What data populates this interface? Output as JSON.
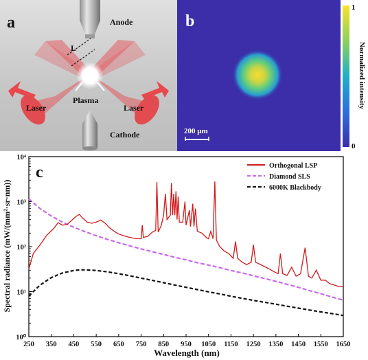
{
  "panel_a": {
    "letter": "a",
    "labels": {
      "anode": "Anode",
      "cathode": "Cathode",
      "laser_left": "Laser",
      "laser_right": "Laser",
      "plasma": "Plasma",
      "length": "L"
    },
    "colors": {
      "laser": "#e8474c",
      "background": "#cfcfcf"
    }
  },
  "panel_b": {
    "letter": "b",
    "scale_bar": "200 µm",
    "colorbar": {
      "label": "Normalized intensity",
      "max_label": "1",
      "min_label": "0"
    },
    "colors": {
      "background": "#3b2ea8",
      "spot_outer": "#1fa6c9",
      "spot_mid": "#6fd07a",
      "spot_core": "#f3d62f"
    }
  },
  "panel_c": {
    "letter": "c"
  },
  "chart_data": {
    "type": "line",
    "xlabel": "Wavelength (nm)",
    "ylabel": "Spectral radiance (mW/(mm²·sr·nm))",
    "xlim": [
      250,
      1650
    ],
    "ylim": [
      1,
      10000
    ],
    "yscale": "log",
    "x_ticks": [
      "250",
      "350",
      "450",
      "550",
      "650",
      "750",
      "850",
      "950",
      "1050",
      "1150",
      "1250",
      "1350",
      "1450",
      "1550",
      "1650"
    ],
    "y_ticks": [
      "10⁰",
      "10¹",
      "10²",
      "10³",
      "10⁴"
    ],
    "legend_position": "top-right",
    "series": [
      {
        "name": "Orthogonal LSP",
        "color": "#d11a1a",
        "style": "solid",
        "points": [
          [
            250,
            32
          ],
          [
            270,
            70
          ],
          [
            300,
            110
          ],
          [
            330,
            180
          ],
          [
            360,
            250
          ],
          [
            380,
            340
          ],
          [
            400,
            300
          ],
          [
            420,
            310
          ],
          [
            440,
            380
          ],
          [
            460,
            470
          ],
          [
            475,
            520
          ],
          [
            490,
            430
          ],
          [
            510,
            350
          ],
          [
            530,
            330
          ],
          [
            550,
            350
          ],
          [
            570,
            390
          ],
          [
            590,
            330
          ],
          [
            610,
            260
          ],
          [
            630,
            220
          ],
          [
            650,
            190
          ],
          [
            680,
            170
          ],
          [
            700,
            160
          ],
          [
            730,
            150
          ],
          [
            750,
            150
          ],
          [
            755,
            300
          ],
          [
            760,
            160
          ],
          [
            780,
            170
          ],
          [
            800,
            210
          ],
          [
            815,
            230
          ],
          [
            820,
            2700
          ],
          [
            826,
            210
          ],
          [
            840,
            300
          ],
          [
            850,
            500
          ],
          [
            858,
            1500
          ],
          [
            865,
            400
          ],
          [
            880,
            500
          ],
          [
            885,
            2600
          ],
          [
            890,
            500
          ],
          [
            895,
            1500
          ],
          [
            900,
            500
          ],
          [
            905,
            1700
          ],
          [
            910,
            400
          ],
          [
            915,
            1300
          ],
          [
            920,
            350
          ],
          [
            935,
            350
          ],
          [
            945,
            1000
          ],
          [
            950,
            300
          ],
          [
            965,
            650
          ],
          [
            970,
            280
          ],
          [
            980,
            900
          ],
          [
            985,
            280
          ],
          [
            992,
            700
          ],
          [
            1000,
            220
          ],
          [
            1020,
            200
          ],
          [
            1040,
            160
          ],
          [
            1050,
            150
          ],
          [
            1060,
            220
          ],
          [
            1070,
            150
          ],
          [
            1078,
            2800
          ],
          [
            1085,
            140
          ],
          [
            1100,
            100
          ],
          [
            1120,
            80
          ],
          [
            1140,
            70
          ],
          [
            1160,
            55
          ],
          [
            1170,
            130
          ],
          [
            1180,
            55
          ],
          [
            1200,
            45
          ],
          [
            1220,
            40
          ],
          [
            1240,
            45
          ],
          [
            1250,
            110
          ],
          [
            1260,
            45
          ],
          [
            1290,
            38
          ],
          [
            1320,
            32
          ],
          [
            1340,
            28
          ],
          [
            1360,
            25
          ],
          [
            1370,
            70
          ],
          [
            1380,
            25
          ],
          [
            1400,
            23
          ],
          [
            1420,
            35
          ],
          [
            1440,
            22
          ],
          [
            1460,
            25
          ],
          [
            1480,
            95
          ],
          [
            1495,
            22
          ],
          [
            1510,
            20
          ],
          [
            1530,
            30
          ],
          [
            1550,
            18
          ],
          [
            1570,
            18
          ],
          [
            1590,
            15
          ],
          [
            1610,
            14
          ],
          [
            1630,
            13
          ],
          [
            1650,
            13
          ]
        ]
      },
      {
        "name": "Diamond SLS",
        "color": "#c66be8",
        "style": "dashed",
        "points": [
          [
            250,
            1150
          ],
          [
            300,
            700
          ],
          [
            350,
            480
          ],
          [
            400,
            350
          ],
          [
            450,
            270
          ],
          [
            500,
            215
          ],
          [
            550,
            175
          ],
          [
            600,
            145
          ],
          [
            650,
            122
          ],
          [
            700,
            104
          ],
          [
            750,
            89
          ],
          [
            800,
            77
          ],
          [
            850,
            67
          ],
          [
            900,
            58
          ],
          [
            950,
            51
          ],
          [
            1000,
            44
          ],
          [
            1050,
            39
          ],
          [
            1100,
            34
          ],
          [
            1150,
            29.5
          ],
          [
            1200,
            26
          ],
          [
            1250,
            22.5
          ],
          [
            1300,
            19.5
          ],
          [
            1350,
            17
          ],
          [
            1400,
            14.5
          ],
          [
            1450,
            12.5
          ],
          [
            1500,
            10.5
          ],
          [
            1550,
            9
          ],
          [
            1600,
            7.6
          ],
          [
            1650,
            6.5
          ]
        ]
      },
      {
        "name": "6000K Blackbody",
        "color": "#111111",
        "style": "dashed",
        "points": [
          [
            250,
            8
          ],
          [
            300,
            14
          ],
          [
            350,
            20.5
          ],
          [
            400,
            26
          ],
          [
            450,
            29.5
          ],
          [
            475,
            30.5
          ],
          [
            500,
            30.5
          ],
          [
            550,
            29.5
          ],
          [
            600,
            27.5
          ],
          [
            650,
            25
          ],
          [
            700,
            22.5
          ],
          [
            750,
            20
          ],
          [
            800,
            17.8
          ],
          [
            850,
            15.8
          ],
          [
            900,
            14
          ],
          [
            950,
            12.5
          ],
          [
            1000,
            11.1
          ],
          [
            1050,
            9.9
          ],
          [
            1100,
            8.9
          ],
          [
            1150,
            7.9
          ],
          [
            1200,
            7.1
          ],
          [
            1250,
            6.4
          ],
          [
            1300,
            5.8
          ],
          [
            1350,
            5.25
          ],
          [
            1400,
            4.75
          ],
          [
            1450,
            4.3
          ],
          [
            1500,
            3.9
          ],
          [
            1550,
            3.55
          ],
          [
            1600,
            3.25
          ],
          [
            1650,
            2.95
          ]
        ]
      }
    ]
  }
}
